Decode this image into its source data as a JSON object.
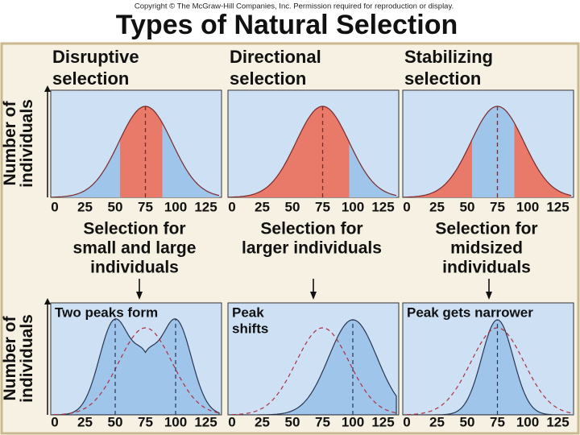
{
  "header": {
    "copyright": "Copyright © The McGraw-Hill Companies, Inc. Permission required for reproduction or display.",
    "title": "Types of Natural Selection"
  },
  "y_axis_label": [
    "Number of",
    "individuals"
  ],
  "panels": [
    {
      "title": [
        "Disruptive",
        "selection"
      ],
      "ticks": [
        "0",
        "25",
        "50",
        "75",
        "100",
        "125"
      ],
      "caption": [
        "Selection for",
        "small and large",
        "individuals"
      ],
      "result": [
        "Two peaks form"
      ]
    },
    {
      "title": [
        "Directional",
        "selection"
      ],
      "ticks": [
        "0",
        "25",
        "50",
        "75",
        "100",
        "125"
      ],
      "caption": [
        "Selection for",
        "larger individuals"
      ],
      "result": [
        "Peak",
        "shifts"
      ]
    },
    {
      "title": [
        "Stabilizing",
        "selection"
      ],
      "ticks": [
        "0",
        "25",
        "50",
        "75",
        "100",
        "125"
      ],
      "caption": [
        "Selection for",
        "midsized",
        "individuals"
      ],
      "result": [
        "Peak gets narrower"
      ]
    }
  ]
}
